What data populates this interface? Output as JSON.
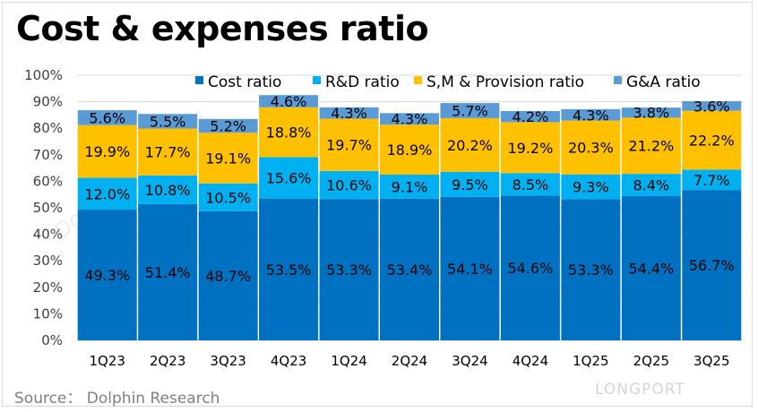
{
  "title": "Cost & expenses ratio",
  "source": "Source：  Dolphin Research",
  "logo": "LONGPORT",
  "watermark": "Dolphin Research",
  "chart_data": {
    "type": "bar",
    "stacked": true,
    "categories": [
      "1Q23",
      "2Q23",
      "3Q23",
      "4Q23",
      "1Q24",
      "2Q24",
      "3Q24",
      "4Q24",
      "1Q25",
      "2Q25",
      "3Q25"
    ],
    "series": [
      {
        "name": "Cost ratio",
        "color": "#0070c0",
        "values": [
          49.3,
          51.4,
          48.7,
          53.5,
          53.3,
          53.4,
          54.1,
          54.6,
          53.3,
          54.4,
          56.7
        ]
      },
      {
        "name": "R&D ratio",
        "color": "#00b0f0",
        "values": [
          12.0,
          10.8,
          10.5,
          15.6,
          10.6,
          9.1,
          9.5,
          8.5,
          9.3,
          8.4,
          7.7
        ]
      },
      {
        "name": "S,M & Provision ratio",
        "color": "#ffc000",
        "values": [
          19.9,
          17.7,
          19.1,
          18.8,
          19.7,
          18.9,
          20.2,
          19.2,
          20.3,
          21.2,
          22.2
        ]
      },
      {
        "name": "G&A ratio",
        "color": "#5b9bd5",
        "values": [
          5.6,
          5.5,
          5.2,
          4.6,
          4.3,
          4.3,
          5.7,
          4.2,
          4.3,
          3.8,
          3.6
        ]
      }
    ],
    "ylim": [
      0,
      100
    ],
    "yticks": [
      "0%",
      "10%",
      "20%",
      "30%",
      "40%",
      "50%",
      "60%",
      "70%",
      "80%",
      "90%",
      "100%"
    ],
    "grid": true,
    "legend": "top",
    "xlabel": "",
    "ylabel": ""
  }
}
